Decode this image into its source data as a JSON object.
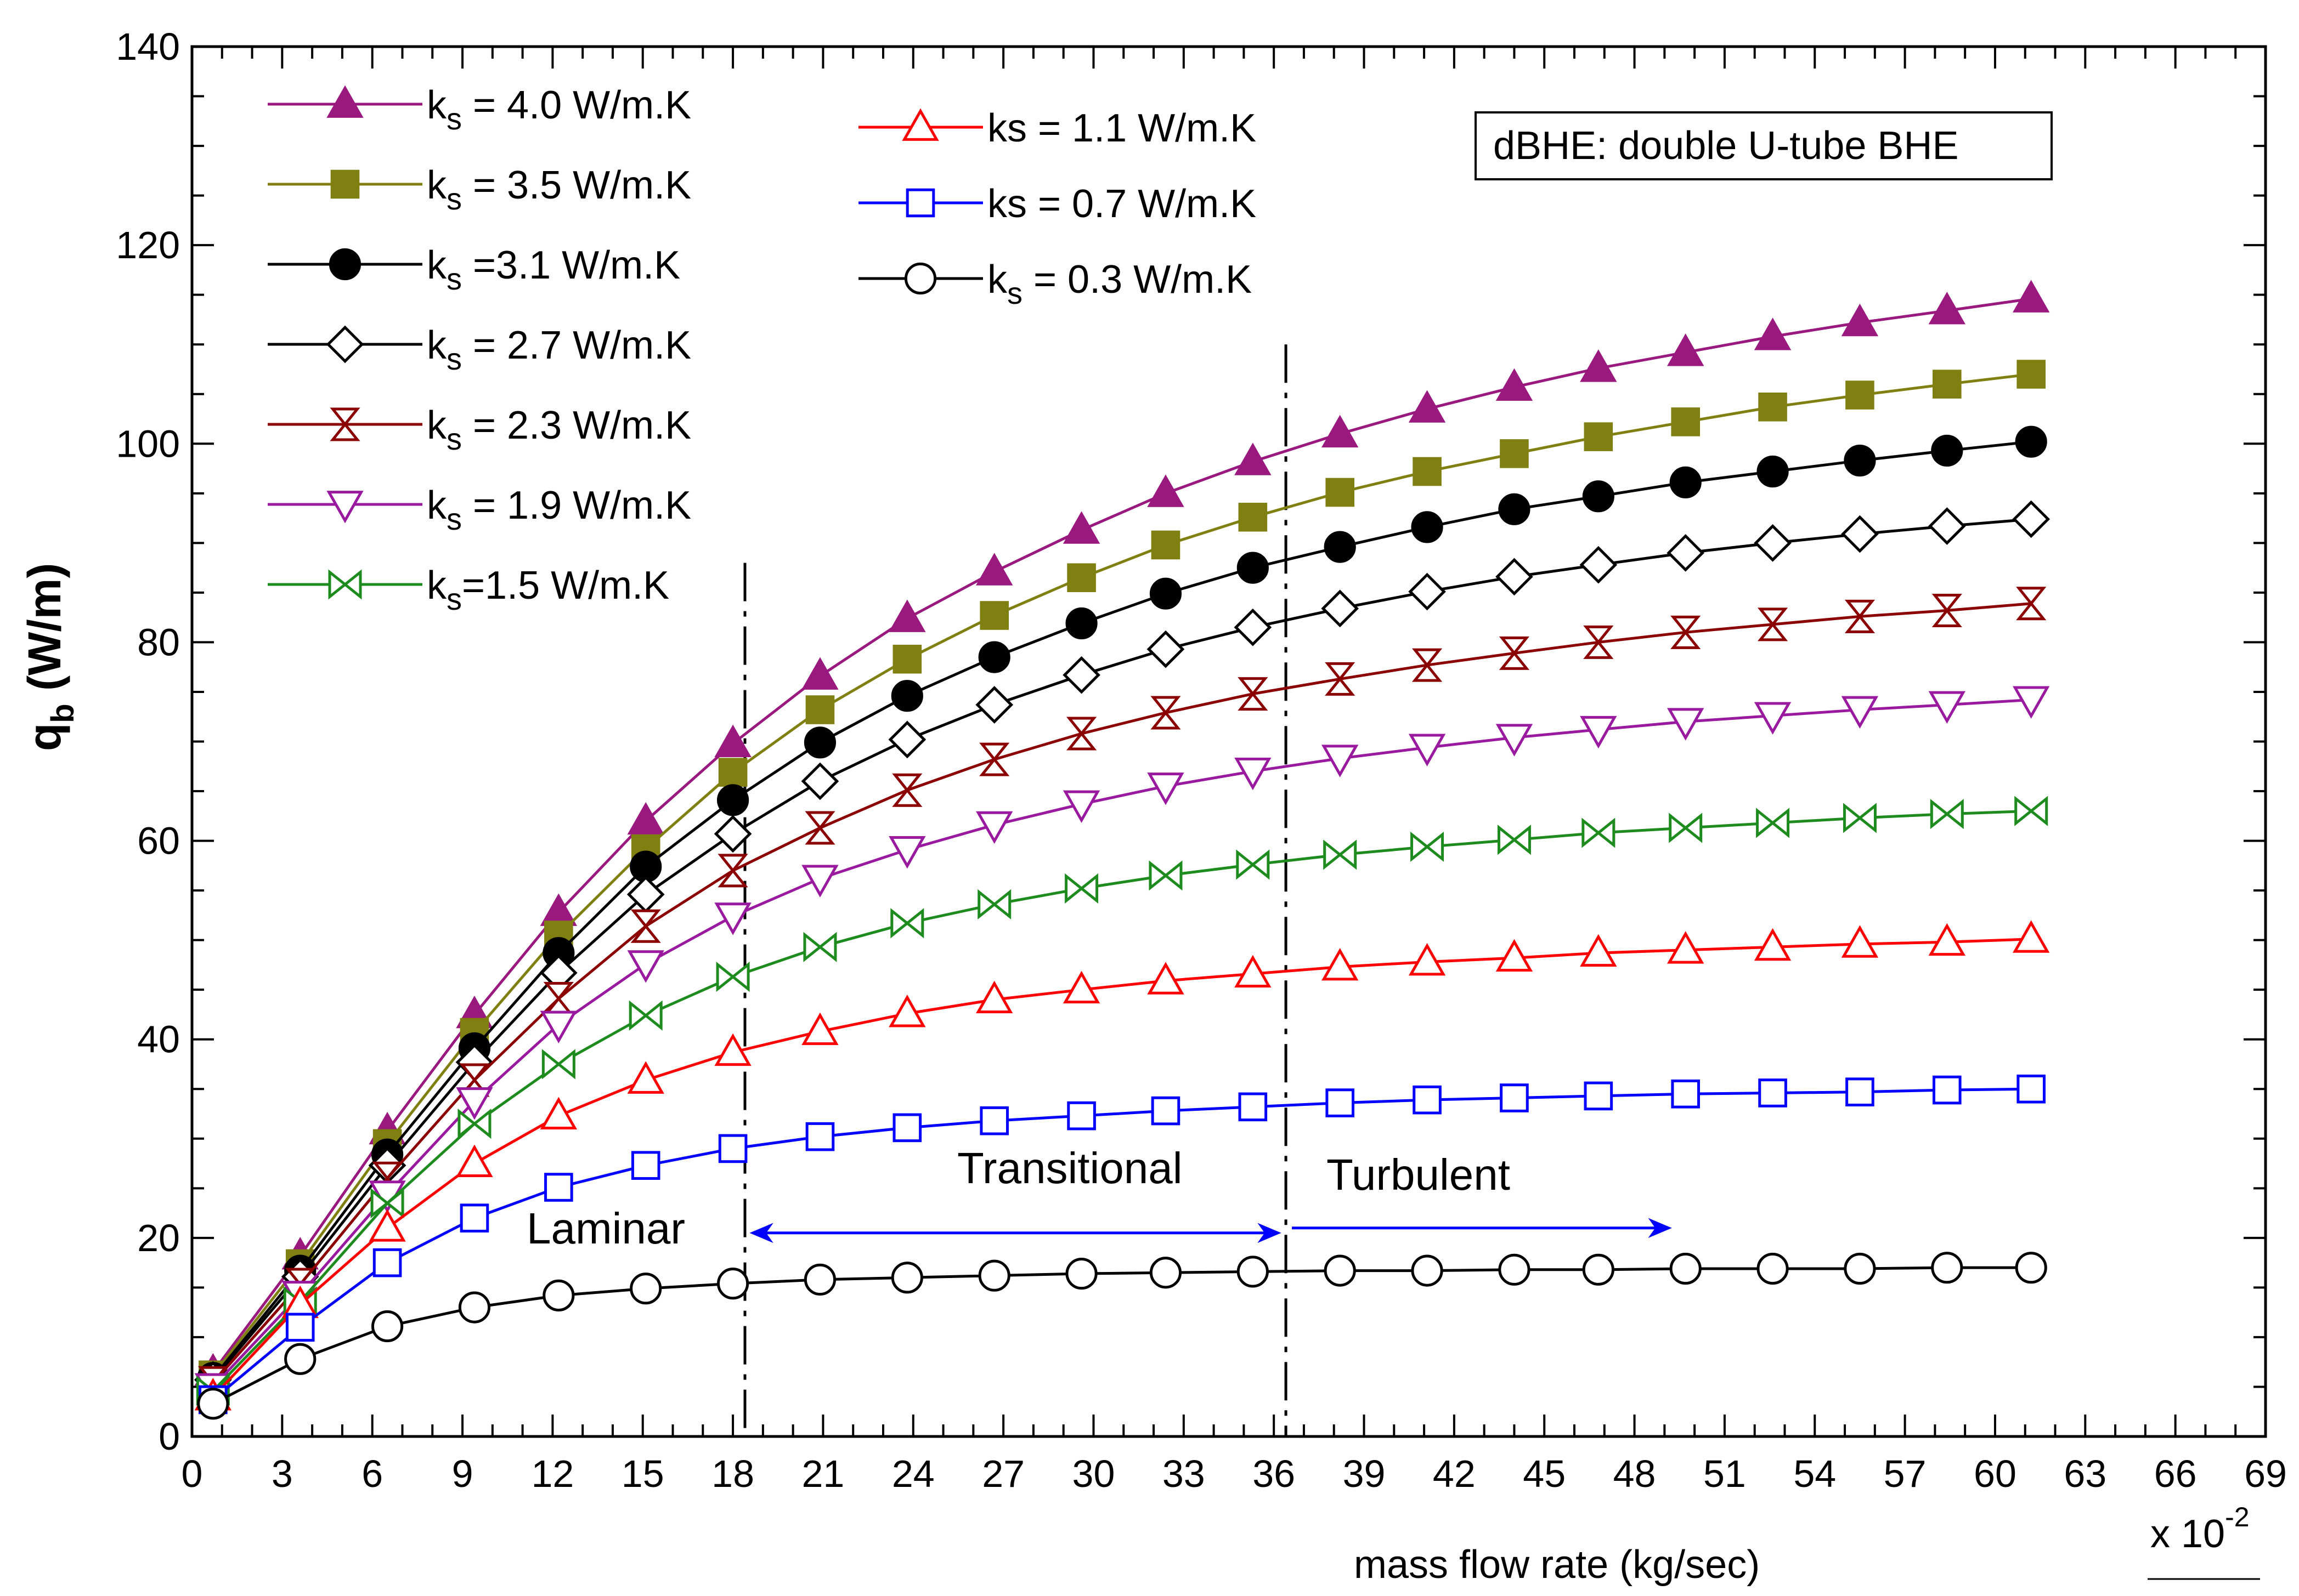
{
  "chart_data": {
    "type": "line",
    "title": "",
    "xlabel": "mass flow rate (kg/sec)",
    "x_multiplier": "x 10",
    "x_multiplier_exp": "-2",
    "ylabel_main": "q",
    "ylabel_sub": "b",
    "ylabel_unit": " (W/m)",
    "xlim": [
      0,
      69
    ],
    "ylim": [
      0,
      140
    ],
    "xticks": [
      0,
      3,
      6,
      9,
      12,
      15,
      18,
      21,
      24,
      27,
      30,
      33,
      36,
      39,
      42,
      45,
      48,
      51,
      54,
      57,
      60,
      63,
      66,
      69
    ],
    "yticks": [
      0,
      20,
      40,
      60,
      80,
      100,
      120,
      140
    ],
    "x": [
      0.7,
      3.6,
      6.5,
      9.4,
      12.2,
      15.1,
      18.0,
      20.9,
      23.8,
      26.7,
      29.6,
      32.4,
      35.3,
      38.2,
      41.1,
      44.0,
      46.8,
      49.7,
      52.6,
      55.5,
      58.4,
      61.2
    ],
    "series": [
      {
        "name": "ks = 4.0 W/m.K",
        "legend_main": "k",
        "legend_sub": "s",
        "legend_rest": " = 4.0 W/m.K",
        "color": "#99197f",
        "marker": "triangle-filled",
        "values": [
          6.5,
          18.2,
          30.8,
          42.5,
          52.8,
          62.0,
          69.8,
          76.6,
          82.4,
          87.1,
          91.3,
          95.0,
          98.2,
          101.0,
          103.5,
          105.7,
          107.6,
          109.2,
          110.8,
          112.2,
          113.4,
          114.6
        ]
      },
      {
        "name": "ks = 3.5 W/m.K",
        "legend_main": "k",
        "legend_sub": "s",
        "legend_rest": " = 3.5 W/m.K",
        "color": "#808012",
        "marker": "square-filled",
        "values": [
          6.2,
          17.4,
          29.5,
          40.7,
          50.5,
          59.2,
          66.9,
          73.2,
          78.3,
          82.7,
          86.5,
          89.8,
          92.6,
          95.1,
          97.2,
          99.0,
          100.7,
          102.2,
          103.7,
          104.9,
          106.0,
          107.0
        ]
      },
      {
        "name": "ks =3.1 W/m.K",
        "legend_main": "k",
        "legend_sub": "s",
        "legend_rest": " =3.1 W/m.K",
        "color": "#000000",
        "marker": "circle-filled",
        "values": [
          5.9,
          16.7,
          28.4,
          39.1,
          48.7,
          57.4,
          64.1,
          69.9,
          74.6,
          78.5,
          81.9,
          84.9,
          87.5,
          89.6,
          91.6,
          93.4,
          94.7,
          96.1,
          97.2,
          98.3,
          99.3,
          100.2
        ]
      },
      {
        "name": "ks = 2.7 W/m.K",
        "legend_main": "k",
        "legend_sub": "s",
        "legend_rest": " = 2.7 W/m.K",
        "color": "#000000",
        "marker": "diamond-open",
        "values": [
          5.7,
          16.1,
          27.3,
          37.7,
          46.7,
          54.6,
          60.7,
          66.0,
          70.2,
          73.7,
          76.7,
          79.3,
          81.5,
          83.4,
          85.1,
          86.6,
          87.8,
          89.0,
          90.0,
          90.9,
          91.7,
          92.4
        ]
      },
      {
        "name": "ks = 2.3 W/m.K",
        "legend_main": "k",
        "legend_sub": "s",
        "legend_rest": " = 2.3 W/m.K",
        "color": "#8b0000",
        "marker": "bowtie-vertical",
        "values": [
          5.4,
          15.3,
          26.0,
          35.9,
          44.1,
          51.4,
          57.0,
          61.3,
          65.1,
          68.2,
          70.8,
          72.9,
          74.8,
          76.3,
          77.7,
          78.9,
          80.0,
          81.0,
          81.8,
          82.6,
          83.2,
          83.9
        ]
      },
      {
        "name": "ks = 1.9 W/m.K",
        "legend_main": "k",
        "legend_sub": "s",
        "legend_rest": " = 1.9 W/m.K",
        "color": "#99199f",
        "marker": "triangle-down-open",
        "values": [
          5.0,
          14.3,
          24.4,
          33.8,
          41.5,
          47.6,
          52.4,
          56.2,
          59.1,
          61.6,
          63.7,
          65.5,
          67.0,
          68.3,
          69.4,
          70.4,
          71.2,
          72.0,
          72.6,
          73.2,
          73.7,
          74.2
        ]
      },
      {
        "name": "ks=1.5 W/m.K",
        "legend_main": "k",
        "legend_sub": "s",
        "legend_rest": "=1.5 W/m.K",
        "color": "#1e8b1e",
        "marker": "bowtie-horizontal",
        "values": [
          4.6,
          13.6,
          23.5,
          31.5,
          37.5,
          42.4,
          46.3,
          49.3,
          51.7,
          53.6,
          55.2,
          56.5,
          57.6,
          58.6,
          59.4,
          60.1,
          60.8,
          61.3,
          61.8,
          62.3,
          62.7,
          63.0
        ]
      },
      {
        "name": "ks = 1.1 W/m.K",
        "legend_main": "ks",
        "legend_sub": "",
        "legend_rest": " = 1.1 W/m.K",
        "color": "#ff0000",
        "marker": "triangle-open",
        "values": [
          4.0,
          13.3,
          21.0,
          27.5,
          32.3,
          35.9,
          38.7,
          40.8,
          42.6,
          44.0,
          45.0,
          45.9,
          46.6,
          47.3,
          47.8,
          48.2,
          48.7,
          49.0,
          49.3,
          49.6,
          49.8,
          50.1
        ]
      },
      {
        "name": "ks = 0.7 W/m.K",
        "legend_main": "ks",
        "legend_sub": "",
        "legend_rest": " = 0.7 W/m.K",
        "color": "#0000ff",
        "marker": "square-open",
        "values": [
          3.7,
          11.0,
          17.5,
          22.0,
          25.1,
          27.3,
          29.0,
          30.2,
          31.1,
          31.8,
          32.3,
          32.8,
          33.2,
          33.6,
          33.9,
          34.1,
          34.3,
          34.5,
          34.6,
          34.7,
          34.9,
          35.0
        ]
      },
      {
        "name": "ks = 0.3 W/m.K",
        "legend_main": "k",
        "legend_sub": "s",
        "legend_rest": " = 0.3 W/m.K",
        "color": "#000000",
        "marker": "circle-open",
        "values": [
          3.3,
          7.8,
          11.1,
          13.0,
          14.2,
          14.9,
          15.4,
          15.8,
          16.0,
          16.2,
          16.4,
          16.5,
          16.6,
          16.7,
          16.7,
          16.8,
          16.8,
          16.9,
          16.9,
          16.9,
          17.0,
          17.0
        ]
      }
    ],
    "regime_boundaries": [
      18.4,
      36.4
    ],
    "annotations": {
      "laminar": "Laminar",
      "transitional": "Transitional",
      "turbulent": "Turbulent",
      "infobox": "dBHE: double U-tube BHE"
    },
    "arrow_color": "#0000ff",
    "transitional_arrow": [
      18.6,
      36.2
    ],
    "turbulent_arrow": [
      36.6,
      49.2
    ],
    "grid": false,
    "legend_placement": "top-left"
  }
}
